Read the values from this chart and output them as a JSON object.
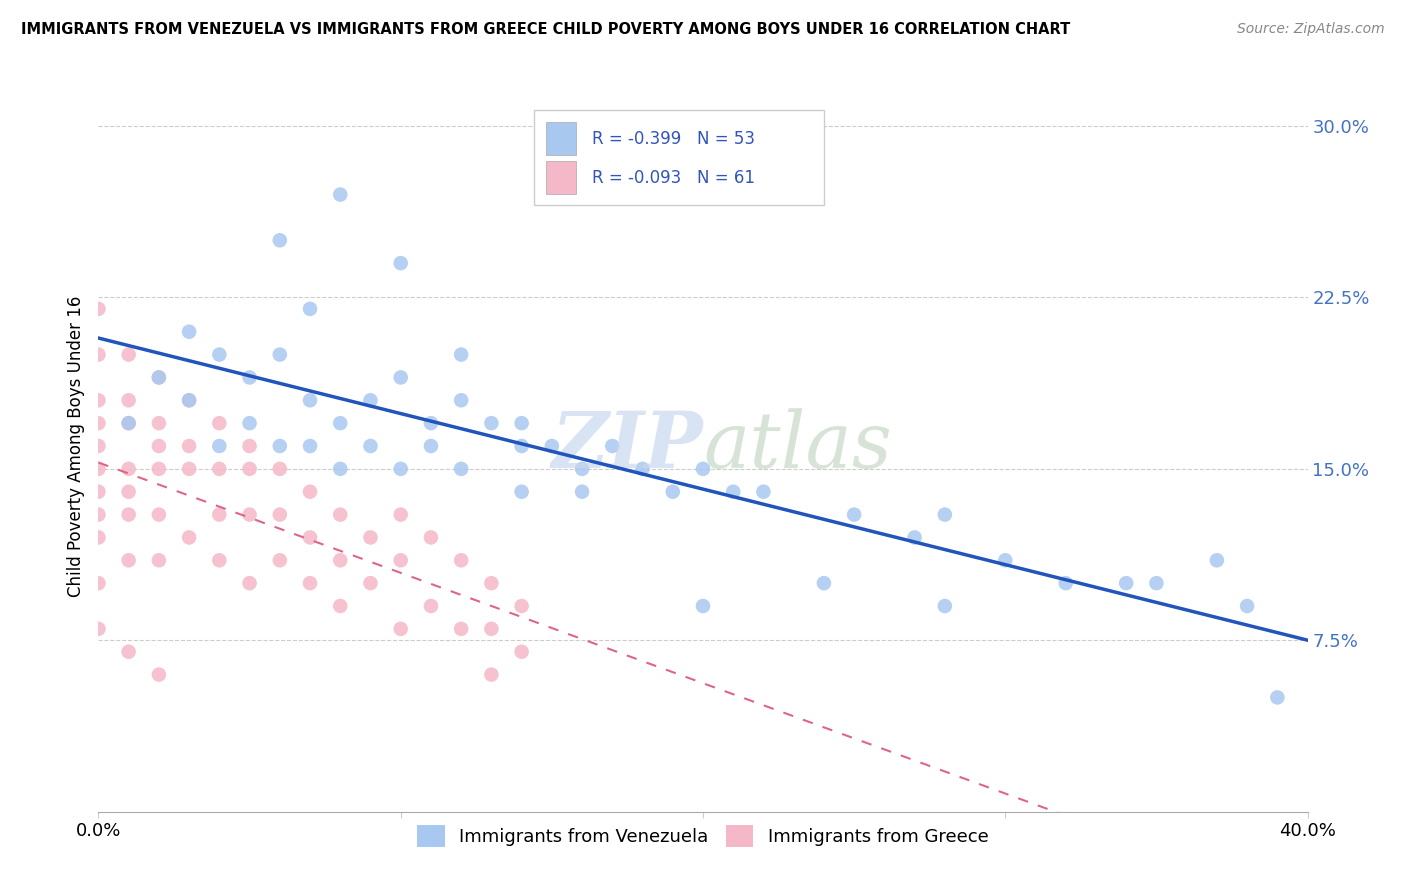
{
  "title": "IMMIGRANTS FROM VENEZUELA VS IMMIGRANTS FROM GREECE CHILD POVERTY AMONG BOYS UNDER 16 CORRELATION CHART",
  "source": "Source: ZipAtlas.com",
  "ylabel": "Child Poverty Among Boys Under 16",
  "xlim": [
    0.0,
    0.4
  ],
  "ylim": [
    0.0,
    0.32
  ],
  "yticks": [
    0.075,
    0.15,
    0.225,
    0.3
  ],
  "ytick_labels": [
    "7.5%",
    "15.0%",
    "22.5%",
    "30.0%"
  ],
  "r_venezuela": -0.399,
  "n_venezuela": 53,
  "r_greece": -0.093,
  "n_greece": 61,
  "color_venezuela": "#a8c8f0",
  "color_greece": "#f5b8c8",
  "line_color_venezuela": "#2255bb",
  "line_color_greece": "#dd6688",
  "venezuela_x": [
    0.01,
    0.02,
    0.03,
    0.03,
    0.04,
    0.04,
    0.05,
    0.05,
    0.06,
    0.06,
    0.07,
    0.07,
    0.07,
    0.08,
    0.08,
    0.09,
    0.09,
    0.1,
    0.1,
    0.11,
    0.11,
    0.12,
    0.12,
    0.13,
    0.14,
    0.14,
    0.15,
    0.16,
    0.17,
    0.18,
    0.19,
    0.2,
    0.21,
    0.22,
    0.25,
    0.27,
    0.28,
    0.3,
    0.32,
    0.34,
    0.35,
    0.37,
    0.38,
    0.39,
    0.06,
    0.08,
    0.1,
    0.12,
    0.14,
    0.16,
    0.2,
    0.24,
    0.28
  ],
  "venezuela_y": [
    0.17,
    0.19,
    0.21,
    0.18,
    0.2,
    0.16,
    0.19,
    0.17,
    0.2,
    0.16,
    0.18,
    0.16,
    0.22,
    0.17,
    0.15,
    0.18,
    0.16,
    0.19,
    0.15,
    0.17,
    0.16,
    0.18,
    0.15,
    0.17,
    0.16,
    0.14,
    0.16,
    0.15,
    0.16,
    0.15,
    0.14,
    0.15,
    0.14,
    0.14,
    0.13,
    0.12,
    0.13,
    0.11,
    0.1,
    0.1,
    0.1,
    0.11,
    0.09,
    0.05,
    0.25,
    0.27,
    0.24,
    0.2,
    0.17,
    0.14,
    0.09,
    0.1,
    0.09
  ],
  "greece_x": [
    0.0,
    0.0,
    0.0,
    0.0,
    0.0,
    0.0,
    0.0,
    0.0,
    0.0,
    0.0,
    0.01,
    0.01,
    0.01,
    0.01,
    0.01,
    0.01,
    0.01,
    0.02,
    0.02,
    0.02,
    0.02,
    0.02,
    0.02,
    0.03,
    0.03,
    0.03,
    0.03,
    0.04,
    0.04,
    0.04,
    0.04,
    0.05,
    0.05,
    0.05,
    0.05,
    0.06,
    0.06,
    0.06,
    0.07,
    0.07,
    0.07,
    0.08,
    0.08,
    0.08,
    0.09,
    0.09,
    0.1,
    0.1,
    0.1,
    0.11,
    0.11,
    0.12,
    0.12,
    0.13,
    0.13,
    0.13,
    0.14,
    0.14,
    0.0,
    0.01,
    0.02
  ],
  "greece_y": [
    0.22,
    0.2,
    0.18,
    0.17,
    0.16,
    0.15,
    0.14,
    0.13,
    0.12,
    0.1,
    0.2,
    0.18,
    0.17,
    0.15,
    0.14,
    0.13,
    0.11,
    0.19,
    0.17,
    0.16,
    0.15,
    0.13,
    0.11,
    0.18,
    0.16,
    0.15,
    0.12,
    0.17,
    0.15,
    0.13,
    0.11,
    0.16,
    0.15,
    0.13,
    0.1,
    0.15,
    0.13,
    0.11,
    0.14,
    0.12,
    0.1,
    0.13,
    0.11,
    0.09,
    0.12,
    0.1,
    0.13,
    0.11,
    0.08,
    0.12,
    0.09,
    0.11,
    0.08,
    0.1,
    0.08,
    0.06,
    0.09,
    0.07,
    0.08,
    0.07,
    0.06
  ]
}
